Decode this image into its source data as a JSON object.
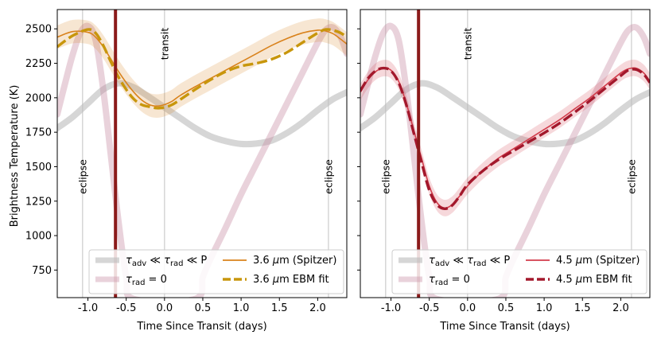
{
  "chart_data": [
    {
      "type": "line",
      "panel": "left",
      "xlabel": "Time Since Transit (days)",
      "ylabel": "Brightness Temperature (K)",
      "xlim": [
        -1.4,
        2.38
      ],
      "ylim": [
        550,
        2640
      ],
      "xticks": [
        -1.0,
        -0.5,
        0.0,
        0.5,
        1.0,
        1.5,
        2.0
      ],
      "xtick_labels": [
        "-1.0",
        "-0.5",
        "0.0",
        "0.5",
        "1.0",
        "1.5",
        "2.0"
      ],
      "yticks": [
        750,
        1000,
        1250,
        1500,
        1750,
        2000,
        2250,
        2500
      ],
      "ytick_labels": [
        "750",
        "1000",
        "1250",
        "1500",
        "1750",
        "2000",
        "2250",
        "2500"
      ],
      "vlines": [
        {
          "x": -1.07,
          "label": "eclipse"
        },
        {
          "x": 0.0,
          "label": "transit"
        },
        {
          "x": 2.14,
          "label": "eclipse"
        }
      ],
      "marker_line": {
        "x": -0.64,
        "color": "#8b1a1a"
      },
      "series": [
        {
          "name": "τadv ≪ τrad ≪ P",
          "style": "gray-band",
          "color": "#bbbbbb",
          "x": [
            -1.4,
            -1.2,
            -1.0,
            -0.8,
            -0.6,
            -0.4,
            -0.2,
            0.0,
            0.2,
            0.4,
            0.6,
            0.8,
            1.0,
            1.2,
            1.4,
            1.6,
            1.8,
            2.0,
            2.2,
            2.38
          ],
          "y": [
            1780,
            1860,
            1960,
            2060,
            2105,
            2075,
            2005,
            1930,
            1855,
            1780,
            1720,
            1685,
            1665,
            1668,
            1690,
            1745,
            1820,
            1910,
            1990,
            2040
          ]
        },
        {
          "name": "τrad = 0",
          "style": "pink-band",
          "color": "#c98fa6",
          "x": [
            -1.4,
            -1.3,
            -1.2,
            -1.1,
            -1.0,
            -0.9,
            -0.8,
            -0.7,
            -0.6,
            -0.5,
            -0.4,
            0.4,
            0.5,
            0.6,
            0.8,
            1.0,
            1.2,
            1.4,
            1.6,
            1.8,
            2.0,
            2.1,
            2.2,
            2.3,
            2.38
          ],
          "y": [
            1880,
            2100,
            2310,
            2470,
            2520,
            2420,
            2060,
            1580,
            1100,
            700,
            540,
            540,
            700,
            830,
            1060,
            1300,
            1520,
            1740,
            1960,
            2180,
            2400,
            2490,
            2510,
            2440,
            2320
          ]
        },
        {
          "name": "3.6 μm (Spitzer)",
          "style": "solid",
          "color": "#d9821c",
          "x": [
            -1.4,
            -1.2,
            -1.0,
            -0.9,
            -0.8,
            -0.7,
            -0.6,
            -0.5,
            -0.4,
            -0.3,
            -0.2,
            -0.1,
            0.0,
            0.1,
            0.2,
            0.4,
            0.6,
            0.8,
            1.0,
            1.2,
            1.4,
            1.6,
            1.8,
            2.0,
            2.1,
            2.2,
            2.3,
            2.38
          ],
          "y": [
            2440,
            2480,
            2475,
            2440,
            2370,
            2280,
            2190,
            2110,
            2040,
            1985,
            1950,
            1940,
            1950,
            1975,
            2015,
            2080,
            2140,
            2200,
            2260,
            2320,
            2380,
            2430,
            2470,
            2490,
            2485,
            2465,
            2425,
            2390
          ],
          "band": 85
        },
        {
          "name": "3.6 μm EBM fit",
          "style": "dashed",
          "color": "#c8960c",
          "x": [
            -1.4,
            -1.2,
            -1.0,
            -0.9,
            -0.8,
            -0.7,
            -0.6,
            -0.5,
            -0.4,
            -0.3,
            -0.2,
            -0.1,
            0.0,
            0.1,
            0.2,
            0.4,
            0.6,
            0.8,
            1.0,
            1.2,
            1.4,
            1.6,
            1.8,
            2.0,
            2.1,
            2.2,
            2.3,
            2.38
          ],
          "y": [
            2370,
            2450,
            2495,
            2470,
            2380,
            2260,
            2150,
            2060,
            1990,
            1950,
            1935,
            1925,
            1930,
            1950,
            1985,
            2060,
            2130,
            2190,
            2230,
            2250,
            2280,
            2330,
            2400,
            2470,
            2495,
            2490,
            2470,
            2440
          ]
        }
      ],
      "legend": {
        "placement": "lower-right",
        "entries": [
          "τadv ≪ τrad ≪ P",
          "τrad = 0",
          "3.6 μm (Spitzer)",
          "3.6 μm EBM fit"
        ]
      }
    },
    {
      "type": "line",
      "panel": "right",
      "xlabel": "Time Since Transit (days)",
      "ylabel": "",
      "xlim": [
        -1.4,
        2.38
      ],
      "ylim": [
        550,
        2640
      ],
      "xticks": [
        -1.0,
        -0.5,
        0.0,
        0.5,
        1.0,
        1.5,
        2.0
      ],
      "xtick_labels": [
        "-1.0",
        "-0.5",
        "0.0",
        "0.5",
        "1.0",
        "1.5",
        "2.0"
      ],
      "yticks": [
        750,
        1000,
        1250,
        1500,
        1750,
        2000,
        2250,
        2500
      ],
      "ytick_labels": [],
      "vlines": [
        {
          "x": -1.07,
          "label": "eclipse"
        },
        {
          "x": 0.0,
          "label": "transit"
        },
        {
          "x": 2.14,
          "label": "eclipse"
        }
      ],
      "marker_line": {
        "x": -0.64,
        "color": "#8b1a1a"
      },
      "series": [
        {
          "name": "τadv ≪ τrad ≪ P",
          "style": "gray-band",
          "color": "#bbbbbb",
          "x": [
            -1.4,
            -1.2,
            -1.0,
            -0.8,
            -0.6,
            -0.4,
            -0.2,
            0.0,
            0.2,
            0.4,
            0.6,
            0.8,
            1.0,
            1.2,
            1.4,
            1.6,
            1.8,
            2.0,
            2.2,
            2.38
          ],
          "y": [
            1780,
            1860,
            1960,
            2060,
            2105,
            2075,
            2005,
            1930,
            1855,
            1780,
            1720,
            1685,
            1665,
            1668,
            1690,
            1745,
            1820,
            1910,
            1990,
            2040
          ]
        },
        {
          "name": "τrad = 0",
          "style": "pink-band",
          "color": "#c98fa6",
          "x": [
            -1.4,
            -1.3,
            -1.2,
            -1.1,
            -1.0,
            -0.9,
            -0.8,
            -0.7,
            -0.6,
            -0.5,
            -0.4,
            0.4,
            0.5,
            0.6,
            0.8,
            1.0,
            1.2,
            1.4,
            1.6,
            1.8,
            2.0,
            2.1,
            2.2,
            2.3,
            2.38
          ],
          "y": [
            1880,
            2100,
            2310,
            2470,
            2520,
            2420,
            2060,
            1580,
            1100,
            700,
            540,
            540,
            700,
            830,
            1060,
            1300,
            1520,
            1740,
            1960,
            2180,
            2400,
            2490,
            2510,
            2440,
            2320
          ]
        },
        {
          "name": "4.5 μm (Spitzer)",
          "style": "solid",
          "color": "#d23c4b",
          "x": [
            -1.4,
            -1.3,
            -1.2,
            -1.1,
            -1.0,
            -0.9,
            -0.8,
            -0.7,
            -0.6,
            -0.5,
            -0.4,
            -0.3,
            -0.2,
            -0.1,
            0.0,
            0.2,
            0.4,
            0.6,
            0.8,
            1.0,
            1.2,
            1.4,
            1.6,
            1.8,
            2.0,
            2.1,
            2.2,
            2.3,
            2.38
          ],
          "y": [
            2040,
            2130,
            2190,
            2215,
            2200,
            2120,
            1960,
            1760,
            1560,
            1360,
            1240,
            1200,
            1225,
            1290,
            1360,
            1470,
            1560,
            1630,
            1700,
            1770,
            1840,
            1920,
            2000,
            2090,
            2180,
            2210,
            2215,
            2180,
            2120
          ],
          "band": 60
        },
        {
          "name": "4.5 μm EBM fit",
          "style": "dashed",
          "color": "#a3182c",
          "x": [
            -1.4,
            -1.3,
            -1.2,
            -1.1,
            -1.0,
            -0.9,
            -0.8,
            -0.7,
            -0.6,
            -0.5,
            -0.4,
            -0.3,
            -0.2,
            -0.1,
            0.0,
            0.2,
            0.4,
            0.6,
            0.8,
            1.0,
            1.2,
            1.4,
            1.6,
            1.8,
            2.0,
            2.1,
            2.2,
            2.3,
            2.38
          ],
          "y": [
            2050,
            2140,
            2195,
            2215,
            2195,
            2110,
            1950,
            1740,
            1530,
            1330,
            1225,
            1195,
            1220,
            1290,
            1370,
            1470,
            1550,
            1615,
            1680,
            1745,
            1815,
            1895,
            1980,
            2070,
            2160,
            2200,
            2205,
            2170,
            2110
          ]
        }
      ],
      "legend": {
        "placement": "lower-right",
        "entries": [
          "τadv ≪ τrad ≪ P",
          "τrad = 0",
          "4.5 μm (Spitzer)",
          "4.5 μm EBM fit"
        ]
      }
    }
  ]
}
